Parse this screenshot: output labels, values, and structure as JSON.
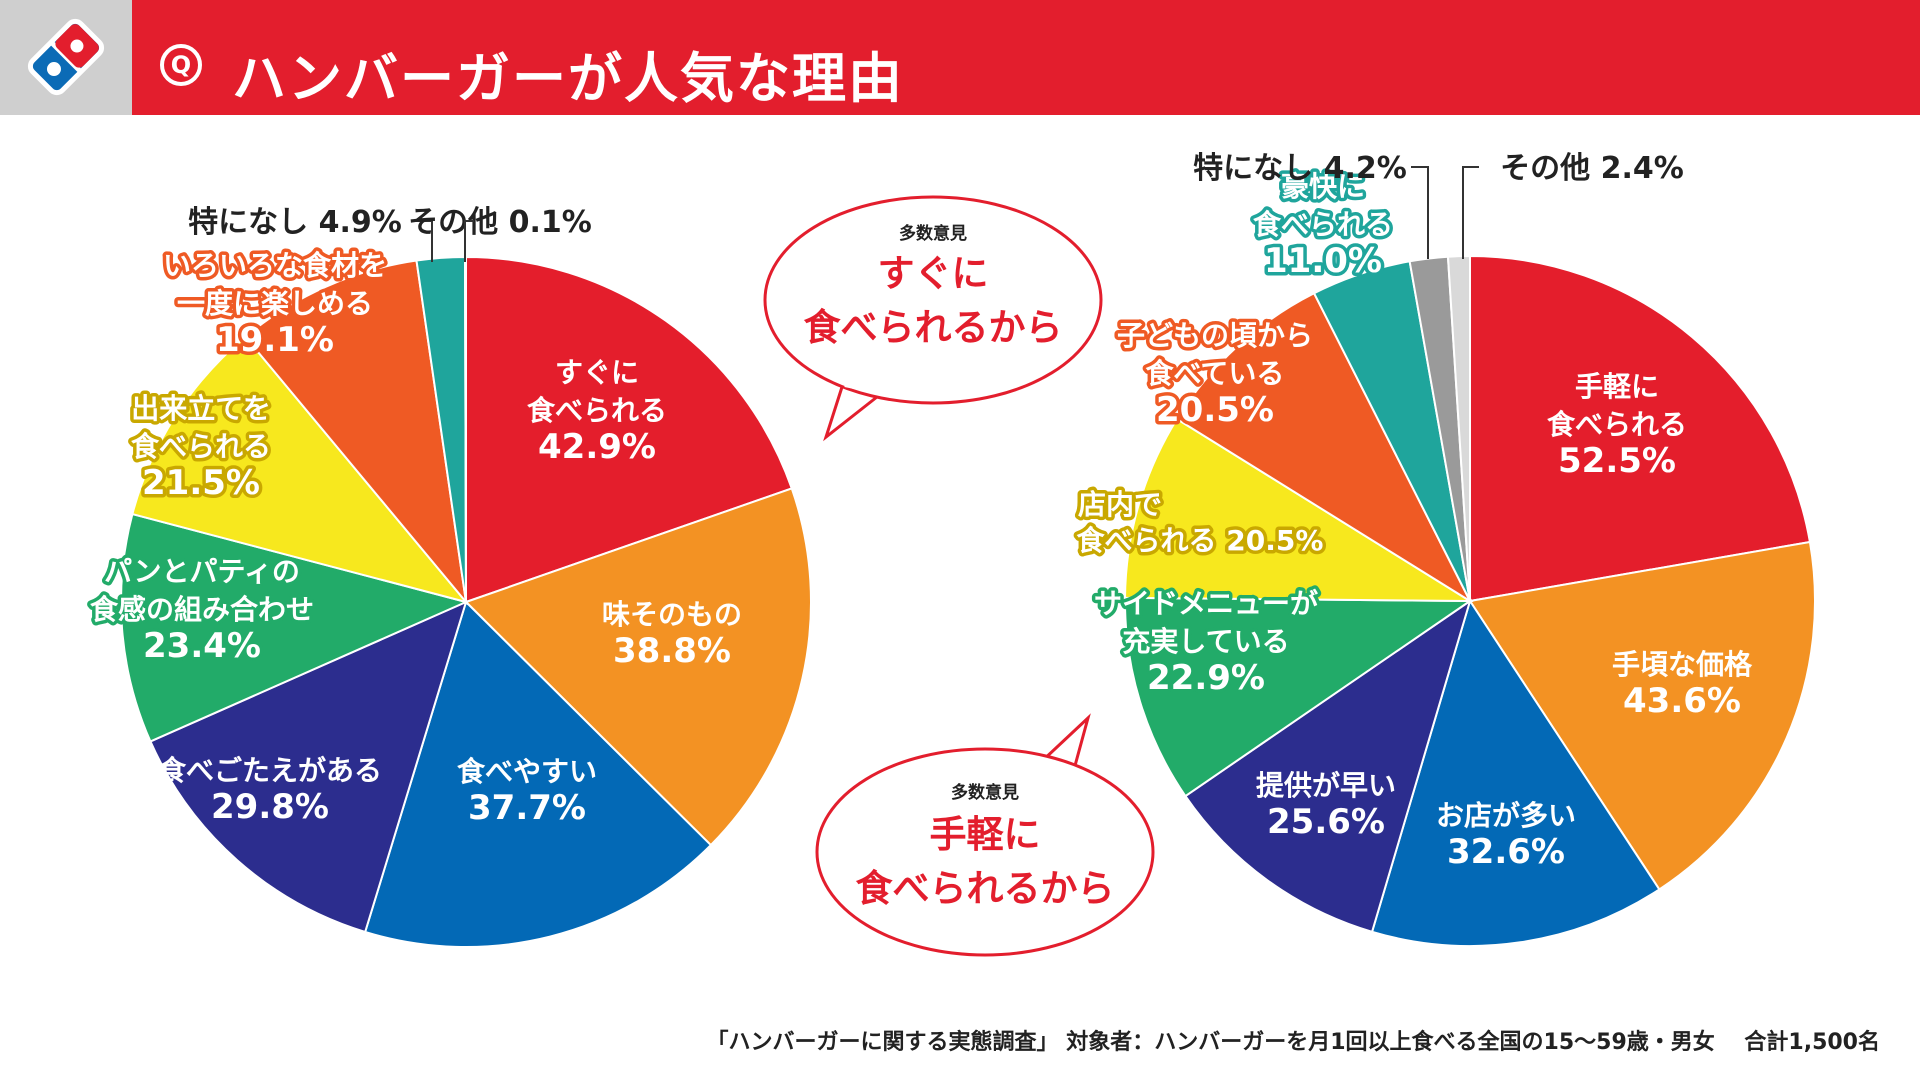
{
  "header": {
    "title": "ハンバーガーが人気な理由",
    "q_label": "Q",
    "brand_color": "#e31e2d"
  },
  "callouts": [
    {
      "caption": "多数意見",
      "lines": [
        "すぐに",
        "食べられるから"
      ]
    },
    {
      "caption": "多数意見",
      "lines": [
        "手軽に",
        "食べられるから"
      ]
    }
  ],
  "chart_data": [
    {
      "type": "pie",
      "title": "",
      "unit": "%",
      "slices": [
        {
          "label": [
            "すぐに",
            "食べられる"
          ],
          "value": 42.9,
          "color": "#e41e2c"
        },
        {
          "label": [
            "味そのもの"
          ],
          "value": 38.8,
          "color": "#f39223"
        },
        {
          "label": [
            "食べやすい"
          ],
          "value": 37.7,
          "color": "#0369b6"
        },
        {
          "label": [
            "食べごたえがある"
          ],
          "value": 29.8,
          "color": "#2c2d8e"
        },
        {
          "label": [
            "パンとパティの",
            "食感の組み合わせ"
          ],
          "value": 23.4,
          "color": "#22ab69"
        },
        {
          "label": [
            "出来立てを",
            "食べられる"
          ],
          "value": 21.5,
          "color": "#f7e81e"
        },
        {
          "label": [
            "いろいろな食材を",
            "一度に楽しめる"
          ],
          "value": 19.1,
          "color": "#ef5a24"
        },
        {
          "label": [
            "特になし"
          ],
          "value": 4.9,
          "color": "#1fa59c"
        },
        {
          "label": [
            "その他"
          ],
          "value": 0.1,
          "color": "#d9d9d9"
        }
      ]
    },
    {
      "type": "pie",
      "title": "",
      "unit": "%",
      "slices": [
        {
          "label": [
            "手軽に",
            "食べられる"
          ],
          "value": 52.5,
          "color": "#e41e2c"
        },
        {
          "label": [
            "手頃な価格"
          ],
          "value": 43.6,
          "color": "#f39223"
        },
        {
          "label": [
            "お店が多い"
          ],
          "value": 32.6,
          "color": "#0369b6"
        },
        {
          "label": [
            "提供が早い"
          ],
          "value": 25.6,
          "color": "#2c2d8e"
        },
        {
          "label": [
            "サイドメニューが",
            "充実している"
          ],
          "value": 22.9,
          "color": "#22ab69"
        },
        {
          "label": [
            "店内で",
            "食べられる"
          ],
          "value": 20.5,
          "color": "#f7e81e"
        },
        {
          "label": [
            "子どもの頃から",
            "食べている"
          ],
          "value": 20.5,
          "color": "#ef5a24"
        },
        {
          "label": [
            "豪快に",
            "食べられる"
          ],
          "value": 11.0,
          "color": "#1fa59c"
        },
        {
          "label": [
            "特になし"
          ],
          "value": 4.2,
          "color": "#9a9a9a"
        },
        {
          "label": [
            "その他"
          ],
          "value": 2.4,
          "color": "#d9d9d9"
        }
      ]
    }
  ],
  "footer": "「ハンバーガーに関する実態調査」 対象者：ハンバーガーを月1回以上食べる全国の15～59歳・男女　 合計1,500名"
}
